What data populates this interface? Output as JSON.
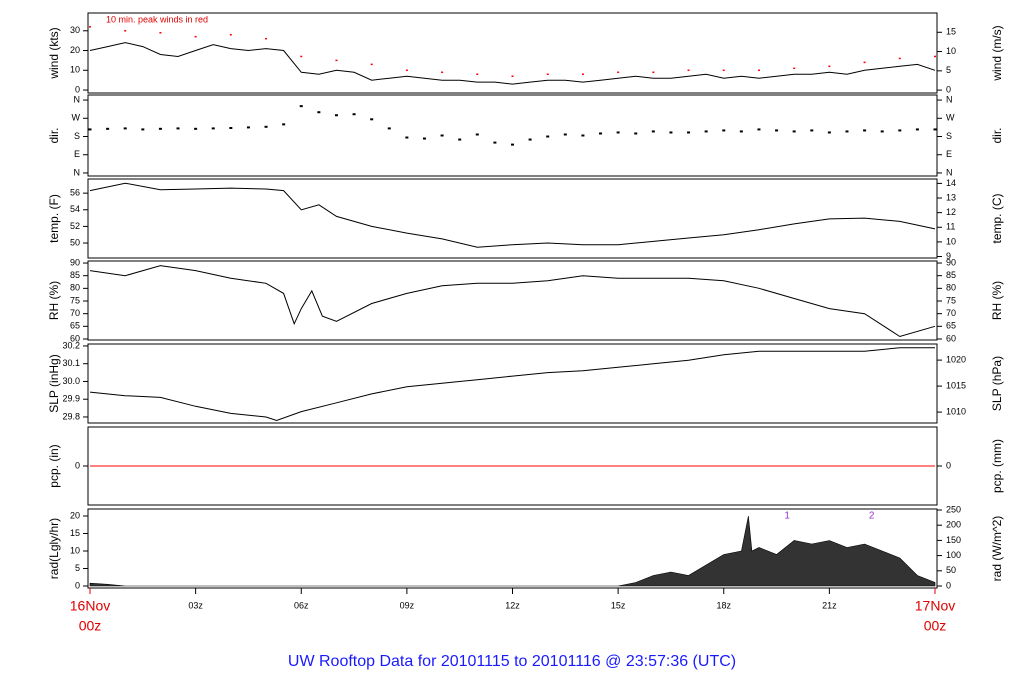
{
  "title": "UW Rooftop Data for 20101115  to  20101116 @ 23:57:36  (UTC)",
  "x_axis": {
    "xlim": [
      0,
      24
    ],
    "xticks": [
      {
        "value": 0,
        "label": "00z"
      },
      {
        "value": 3,
        "label": "03z"
      },
      {
        "value": 6,
        "label": "06z"
      },
      {
        "value": 9,
        "label": "09z"
      },
      {
        "value": 12,
        "label": "12z"
      },
      {
        "value": 15,
        "label": "15z"
      },
      {
        "value": 18,
        "label": "18z"
      },
      {
        "value": 21,
        "label": "21z"
      },
      {
        "value": 24,
        "label": "00z"
      }
    ],
    "date_labels": [
      {
        "value": 0,
        "label": "16Nov"
      },
      {
        "value": 24,
        "label": "17Nov"
      }
    ]
  },
  "chart_data": [
    {
      "type": "line",
      "ylabel": "wind (kts)",
      "y2label": "wind (m/s)",
      "annotation": "10 min. peak winds in red",
      "ylim": [
        -1.5,
        39
      ],
      "yticks": [
        0,
        10,
        20,
        30
      ],
      "y2lim": [
        -0.75,
        20
      ],
      "y2ticks": [
        0,
        5,
        10,
        15
      ],
      "series": [
        {
          "name": "wind",
          "color": "#000000",
          "mode": "line",
          "x": [
            0,
            0.5,
            1,
            1.5,
            2,
            2.5,
            3,
            3.5,
            4,
            4.5,
            5,
            5.5,
            6,
            6.5,
            7,
            7.5,
            8,
            8.5,
            9,
            9.5,
            10,
            10.5,
            11,
            11.5,
            12,
            12.5,
            13,
            13.5,
            14,
            14.5,
            15,
            15.5,
            16,
            16.5,
            17,
            17.5,
            18,
            18.5,
            19,
            19.5,
            20,
            20.5,
            21,
            21.5,
            22,
            22.5,
            23,
            23.5,
            24
          ],
          "values": [
            20,
            22,
            24,
            22,
            18,
            17,
            20,
            23,
            21,
            20,
            21,
            20,
            9,
            8,
            10,
            9,
            5,
            6,
            7,
            6,
            5,
            5,
            4,
            4,
            3,
            4,
            5,
            5,
            4,
            5,
            6,
            7,
            6,
            6,
            7,
            8,
            6,
            7,
            6,
            7,
            8,
            8,
            9,
            8,
            10,
            11,
            12,
            13,
            10
          ]
        },
        {
          "name": "peak winds",
          "color": "#ff0000",
          "mode": "markers",
          "x": [
            0,
            1,
            2,
            3,
            4,
            5,
            6,
            7,
            8,
            9,
            10,
            11,
            12,
            13,
            14,
            15,
            16,
            17,
            18,
            19,
            20,
            21,
            22,
            23,
            24
          ],
          "values": [
            32,
            30,
            29,
            27,
            28,
            26,
            17,
            15,
            13,
            10,
            9,
            8,
            7,
            8,
            8,
            9,
            9,
            10,
            10,
            10,
            11,
            12,
            14,
            16,
            17
          ]
        }
      ]
    },
    {
      "type": "scatter",
      "ylabel": "dir.",
      "y2label": "dir.",
      "ylim": [
        -15,
        385
      ],
      "yticks": [
        {
          "value": 0,
          "label": "N"
        },
        {
          "value": 90,
          "label": "E"
        },
        {
          "value": 180,
          "label": "S"
        },
        {
          "value": 270,
          "label": "W"
        },
        {
          "value": 360,
          "label": "N"
        }
      ],
      "y2lim": [
        -15,
        385
      ],
      "y2ticks": [
        {
          "value": 0,
          "label": "N"
        },
        {
          "value": 90,
          "label": "E"
        },
        {
          "value": 180,
          "label": "S"
        },
        {
          "value": 270,
          "label": "W"
        },
        {
          "value": 360,
          "label": "N"
        }
      ],
      "series": [
        {
          "name": "direction",
          "color": "#000000",
          "mode": "markers",
          "x": [
            0,
            0.5,
            1,
            1.5,
            2,
            2.5,
            3,
            3.5,
            4,
            4.5,
            5,
            5.5,
            6,
            6.5,
            7,
            7.5,
            8,
            8.5,
            9,
            9.5,
            10,
            10.5,
            11,
            11.5,
            12,
            12.5,
            13,
            13.5,
            14,
            14.5,
            15,
            15.5,
            16,
            16.5,
            17,
            17.5,
            18,
            18.5,
            19,
            19.5,
            20,
            20.5,
            21,
            21.5,
            22,
            22.5,
            23,
            23.5,
            24
          ],
          "values": [
            215,
            218,
            220,
            215,
            218,
            220,
            218,
            220,
            222,
            225,
            228,
            240,
            330,
            300,
            285,
            290,
            265,
            220,
            175,
            170,
            185,
            165,
            190,
            150,
            140,
            165,
            180,
            190,
            185,
            195,
            200,
            195,
            205,
            200,
            200,
            205,
            210,
            205,
            215,
            210,
            205,
            210,
            200,
            205,
            210,
            205,
            210,
            215,
            215
          ]
        }
      ]
    },
    {
      "type": "line",
      "ylabel": "temp. (F)",
      "y2label": "temp. (C)",
      "ylim": [
        48.2,
        57.7
      ],
      "yticks": [
        50,
        52,
        54,
        56
      ],
      "y2lim": [
        8.9,
        14.3
      ],
      "y2ticks": [
        9,
        10,
        11,
        12,
        13,
        14
      ],
      "series": [
        {
          "name": "temperature",
          "color": "#000000",
          "mode": "line",
          "x": [
            0,
            1,
            2,
            3,
            4,
            5,
            5.5,
            6,
            6.5,
            7,
            8,
            9,
            10,
            11,
            12,
            13,
            14,
            15,
            16,
            17,
            18,
            19,
            20,
            21,
            22,
            23,
            24
          ],
          "values": [
            56.3,
            57.2,
            56.4,
            56.5,
            56.6,
            56.5,
            56.3,
            54,
            54.6,
            53.2,
            52,
            51.2,
            50.5,
            49.5,
            49.8,
            50,
            49.8,
            49.8,
            50.2,
            50.6,
            51,
            51.6,
            52.3,
            52.9,
            53,
            52.6,
            51.7
          ]
        }
      ]
    },
    {
      "type": "line",
      "ylabel": "RH (%)",
      "y2label": "RH (%)",
      "ylim": [
        59.6,
        90.8
      ],
      "yticks": [
        60,
        65,
        70,
        75,
        80,
        85,
        90
      ],
      "y2lim": [
        59.6,
        90.8
      ],
      "y2ticks": [
        60,
        65,
        70,
        75,
        80,
        85,
        90
      ],
      "series": [
        {
          "name": "relative humidity",
          "color": "#000000",
          "mode": "line",
          "x": [
            0,
            1,
            2,
            3,
            4,
            5,
            5.5,
            5.8,
            6,
            6.3,
            6.6,
            7,
            8,
            9,
            10,
            11,
            12,
            13,
            14,
            15,
            16,
            17,
            18,
            19,
            20,
            21,
            22,
            23,
            24
          ],
          "values": [
            87,
            85,
            89,
            87,
            84,
            82,
            78,
            66,
            72,
            79,
            69,
            67,
            74,
            78,
            81,
            82,
            82,
            83,
            85,
            84,
            84,
            84,
            83,
            80,
            76,
            72,
            70,
            61,
            65
          ]
        }
      ]
    },
    {
      "type": "line",
      "ylabel": "SLP (inHg)",
      "y2label": "SLP (hPa)",
      "ylim": [
        29.766,
        30.211
      ],
      "yticks": [
        29.8,
        29.9,
        {
          "value": 30,
          "label": "30.0"
        },
        30.1,
        30.2
      ],
      "y2lim": [
        1007.9,
        1023.1
      ],
      "y2ticks": [
        1010,
        1015,
        1020
      ],
      "series": [
        {
          "name": "sea level pressure",
          "color": "#000000",
          "mode": "line",
          "x": [
            0,
            1,
            2,
            3,
            4,
            5,
            5.3,
            6,
            7,
            8,
            9,
            10,
            11,
            12,
            13,
            14,
            15,
            16,
            17,
            18,
            19,
            20,
            21,
            22,
            23,
            24
          ],
          "values": [
            29.94,
            29.92,
            29.91,
            29.86,
            29.82,
            29.8,
            29.78,
            29.83,
            29.88,
            29.93,
            29.97,
            29.99,
            30.01,
            30.03,
            30.05,
            30.06,
            30.08,
            30.1,
            30.12,
            30.15,
            30.17,
            30.17,
            30.17,
            30.17,
            30.19,
            30.19
          ]
        }
      ]
    },
    {
      "type": "line",
      "ylabel": "pcp. (in)",
      "y2label": "pcp. (mm)",
      "ylim": [
        -1,
        1
      ],
      "yticks": [
        0
      ],
      "y2lim": [
        -1,
        1
      ],
      "y2ticks": [
        0
      ],
      "series": [
        {
          "name": "precipitation",
          "color": "#ff0000",
          "mode": "line",
          "x": [
            0,
            24
          ],
          "values": [
            0,
            0
          ]
        }
      ]
    },
    {
      "type": "area",
      "ylabel": "rad(Lgly/hr)",
      "y2label": "rad (W/m^2)",
      "ylim": [
        -0.57,
        22
      ],
      "yticks": [
        0,
        5,
        10,
        15,
        20
      ],
      "y2lim": [
        -6.6,
        253.3
      ],
      "y2ticks": [
        0,
        50,
        100,
        150,
        200,
        250
      ],
      "annotations": [
        {
          "x": 19.8,
          "text": "1"
        },
        {
          "x": 22.2,
          "text": "2"
        }
      ],
      "annotation_color": "#9933cc",
      "series": [
        {
          "name": "radiation",
          "color": "#333333",
          "mode": "area",
          "x": [
            0,
            0.5,
            1,
            15,
            15.5,
            16,
            16.5,
            17,
            17.5,
            18,
            18.5,
            18.7,
            18.8,
            19,
            19.5,
            20,
            20.5,
            21,
            21.5,
            22,
            22.5,
            23,
            23.5,
            24
          ],
          "values": [
            0.8,
            0.5,
            0,
            0,
            1,
            3,
            4,
            3,
            6,
            9,
            10,
            20,
            10,
            11,
            9,
            13,
            12,
            13,
            11,
            12,
            10,
            8,
            3,
            1
          ]
        }
      ]
    }
  ]
}
